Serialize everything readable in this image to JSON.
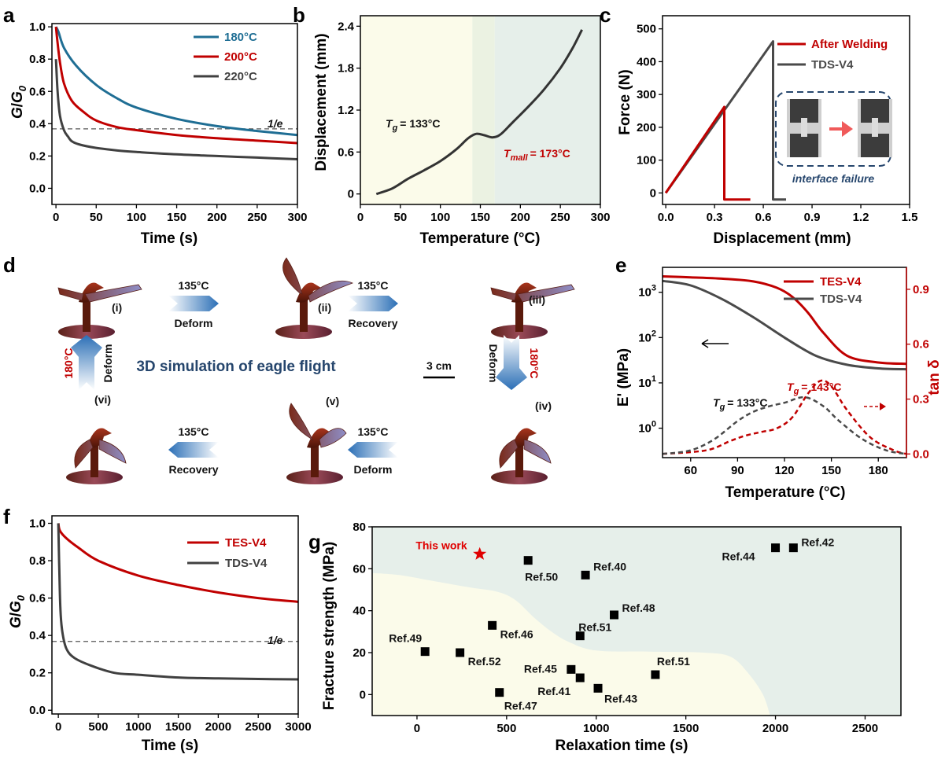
{
  "panel_labels": [
    "a",
    "b",
    "c",
    "d",
    "e",
    "f",
    "g"
  ],
  "colors": {
    "teal": "#1f6e94",
    "red": "#c00000",
    "dark": "#404040",
    "blue": "#2b6fb6",
    "navy": "#26466d",
    "shadeGreen": "#e6efea",
    "shadeYellow": "#fbfbea"
  },
  "chart_data": [
    {
      "id": "a",
      "type": "line",
      "xlabel": "Time (s)",
      "ylabel": "G/G0",
      "xlim": [
        -5,
        300
      ],
      "ylim": [
        -0.1,
        1.02
      ],
      "xticks": [
        "0",
        "50",
        "100",
        "150",
        "200",
        "250",
        "300"
      ],
      "yticks": [
        "0.0",
        "0.2",
        "0.4",
        "0.6",
        "0.8",
        "1.0"
      ],
      "series": [
        {
          "name": "180°C",
          "color": "#1f6e94",
          "x": [
            0,
            3,
            10,
            25,
            50,
            75,
            100,
            150,
            200,
            250,
            300
          ],
          "y": [
            1.0,
            0.97,
            0.87,
            0.76,
            0.64,
            0.56,
            0.5,
            0.43,
            0.385,
            0.355,
            0.33
          ]
        },
        {
          "name": "200°C",
          "color": "#c00000",
          "x": [
            0,
            2,
            5,
            10,
            20,
            35,
            50,
            75,
            100,
            150,
            200,
            250,
            300
          ],
          "y": [
            1.0,
            0.9,
            0.78,
            0.65,
            0.54,
            0.47,
            0.42,
            0.38,
            0.36,
            0.33,
            0.31,
            0.295,
            0.28
          ]
        },
        {
          "name": "220°C",
          "color": "#404040",
          "x": [
            0,
            2,
            5,
            10,
            15,
            20,
            30,
            50,
            75,
            100,
            150,
            200,
            250,
            300
          ],
          "y": [
            0.8,
            0.6,
            0.45,
            0.36,
            0.32,
            0.29,
            0.27,
            0.25,
            0.235,
            0.225,
            0.21,
            0.2,
            0.19,
            0.18
          ]
        }
      ],
      "reference": {
        "label": "1/e",
        "y": 0.368
      }
    },
    {
      "id": "b",
      "type": "line",
      "xlabel": "Temperature (°C)",
      "ylabel": "Displacement (mm)",
      "xlim": [
        0,
        300
      ],
      "ylim": [
        -0.15,
        2.55
      ],
      "xticks": [
        "0",
        "50",
        "100",
        "150",
        "200",
        "250",
        "300"
      ],
      "yticks": [
        "0",
        "0.6",
        "1.2",
        "1.8",
        "2.4"
      ],
      "series": [
        {
          "name": "",
          "color": "#333333",
          "x": [
            20,
            40,
            60,
            80,
            100,
            120,
            135,
            145,
            155,
            165,
            175,
            190,
            210,
            230,
            250,
            265,
            277
          ],
          "y": [
            0.0,
            0.08,
            0.22,
            0.34,
            0.47,
            0.64,
            0.8,
            0.86,
            0.84,
            0.81,
            0.85,
            1.02,
            1.25,
            1.5,
            1.8,
            2.08,
            2.35
          ]
        }
      ],
      "annotations": {
        "tg": "= 133°C",
        "tmall": "= 173°C",
        "tg_sym": "T",
        "tg_sub": "g",
        "tm_sym": "T",
        "tm_sub": "mall"
      },
      "regions": [
        [
          0,
          140
        ],
        [
          140,
          168
        ],
        [
          168,
          300
        ]
      ]
    },
    {
      "id": "c",
      "type": "line",
      "xlabel": "Displacement (mm)",
      "ylabel": "Force (N)",
      "xlim": [
        -0.02,
        1.5
      ],
      "ylim": [
        -35,
        540
      ],
      "xticks": [
        "0.0",
        "0.3",
        "0.6",
        "0.9",
        "1.2",
        "1.5"
      ],
      "yticks": [
        "0",
        "100",
        "200",
        "300",
        "400",
        "500"
      ],
      "series": [
        {
          "name": "After Welding",
          "color": "#c00000",
          "x": [
            0,
            0.36,
            0.36,
            0.52
          ],
          "y": [
            0,
            262,
            -20,
            -20
          ]
        },
        {
          "name": "TDS-V4",
          "color": "#4a4a4a",
          "x": [
            0,
            0.66,
            0.66,
            0.74
          ],
          "y": [
            0,
            462,
            -20,
            -20
          ]
        }
      ],
      "inset_caption": "interface failure"
    },
    {
      "id": "e",
      "type": "line",
      "xlabel": "Temperature (°C)",
      "ylabel": "E' (MPa)",
      "ylabel2": "tan δ",
      "xlim": [
        42,
        198
      ],
      "xticks": [
        "60",
        "90",
        "120",
        "150",
        "180"
      ],
      "yticks_log": [
        "10^0",
        "10^1",
        "10^2",
        "10^3"
      ],
      "yticks2": [
        "0.0",
        "0.3",
        "0.6",
        "0.9"
      ],
      "series": [
        {
          "name": "TES-V4",
          "color": "#c00000",
          "x": [
            42,
            60,
            80,
            100,
            115,
            125,
            135,
            145,
            160,
            180,
            198
          ],
          "logy": [
            3.35,
            3.33,
            3.3,
            3.24,
            3.1,
            2.9,
            2.55,
            2.1,
            1.6,
            1.45,
            1.42
          ]
        },
        {
          "name": "TDS-V4",
          "color": "#4a4a4a",
          "x": [
            42,
            60,
            80,
            100,
            120,
            140,
            160,
            180,
            198
          ],
          "logy": [
            3.25,
            3.15,
            2.85,
            2.45,
            2.0,
            1.6,
            1.4,
            1.32,
            1.3
          ]
        }
      ],
      "tan_series": [
        {
          "name": "TES-V4",
          "color": "#c00000",
          "x": [
            42,
            70,
            85,
            95,
            105,
            115,
            125,
            135,
            143,
            150,
            160,
            175,
            190,
            198
          ],
          "y": [
            0.0,
            0.02,
            0.07,
            0.1,
            0.12,
            0.14,
            0.2,
            0.33,
            0.4,
            0.37,
            0.24,
            0.09,
            0.02,
            0.0
          ]
        },
        {
          "name": "TDS-V4",
          "color": "#4a4a4a",
          "x": [
            42,
            60,
            75,
            90,
            100,
            110,
            120,
            133,
            145,
            155,
            170,
            185,
            198
          ],
          "y": [
            0.0,
            0.02,
            0.08,
            0.18,
            0.23,
            0.26,
            0.28,
            0.31,
            0.26,
            0.18,
            0.08,
            0.02,
            0.0
          ]
        }
      ],
      "annotations": {
        "tg_red": "= 143°C",
        "tg_black": "= 133°C",
        "sym": "T",
        "sub": "g"
      }
    },
    {
      "id": "f",
      "type": "line",
      "xlabel": "Time (s)",
      "ylabel": "G/G0",
      "xlim": [
        -80,
        3000
      ],
      "ylim": [
        -0.02,
        1.04
      ],
      "xticks": [
        "0",
        "500",
        "1000",
        "1500",
        "2000",
        "2500",
        "3000"
      ],
      "yticks": [
        "0.0",
        "0.2",
        "0.4",
        "0.6",
        "0.8",
        "1.0"
      ],
      "series": [
        {
          "name": "TES-V4",
          "color": "#c00000",
          "x": [
            0,
            20,
            100,
            250,
            500,
            1000,
            1500,
            2000,
            2500,
            3000
          ],
          "y": [
            1.0,
            0.96,
            0.92,
            0.87,
            0.8,
            0.72,
            0.67,
            0.63,
            0.6,
            0.58
          ]
        },
        {
          "name": "TDS-V4",
          "color": "#404040",
          "x": [
            0,
            10,
            25,
            50,
            100,
            200,
            400,
            700,
            1000,
            1500,
            2000,
            2500,
            3000
          ],
          "y": [
            1.0,
            0.8,
            0.55,
            0.42,
            0.33,
            0.28,
            0.24,
            0.2,
            0.19,
            0.175,
            0.17,
            0.167,
            0.165
          ]
        }
      ],
      "reference": {
        "label": "1/e",
        "y": 0.368
      }
    },
    {
      "id": "g",
      "type": "scatter",
      "xlabel": "Relaxation time (s)",
      "ylabel": "Fracture strength (MPa)",
      "xlim": [
        -250,
        2700
      ],
      "ylim": [
        -10,
        80
      ],
      "xticks": [
        "0",
        "500",
        "1000",
        "1500",
        "2000",
        "2500"
      ],
      "yticks": [
        "0",
        "20",
        "40",
        "60",
        "80"
      ],
      "points": [
        {
          "label": "Ref.49",
          "x": 45,
          "y": 20.5
        },
        {
          "label": "Ref.52",
          "x": 240,
          "y": 20
        },
        {
          "label": "Ref.46",
          "x": 420,
          "y": 33
        },
        {
          "label": "Ref.47",
          "x": 460,
          "y": 1
        },
        {
          "label": "Ref.50",
          "x": 620,
          "y": 64
        },
        {
          "label": "Ref.45",
          "x": 860,
          "y": 12
        },
        {
          "label": "Ref.41",
          "x": 910,
          "y": 8
        },
        {
          "label": "Ref.51",
          "x": 910,
          "y": 28
        },
        {
          "label": "Ref.40",
          "x": 940,
          "y": 57
        },
        {
          "label": "Ref.43",
          "x": 1010,
          "y": 3
        },
        {
          "label": "Ref.48",
          "x": 1100,
          "y": 38
        },
        {
          "label": "Ref.51",
          "x": 1330,
          "y": 9.5
        },
        {
          "label": "Ref.44",
          "x": 2000,
          "y": 70
        },
        {
          "label": "Ref.42",
          "x": 2100,
          "y": 70
        }
      ],
      "highlight": {
        "label": "This work",
        "x": 350,
        "y": 67,
        "color": "#e00000"
      }
    }
  ],
  "panel_d": {
    "title": "3D simulation of eagle flight",
    "roman": [
      "(i)",
      "(ii)",
      "(iii)",
      "(iv)",
      "(v)",
      "(vi)"
    ],
    "arrows": [
      {
        "temp": "135°C",
        "action": "Deform"
      },
      {
        "temp": "135°C",
        "action": "Recovery"
      },
      {
        "temp": "180°C",
        "action": "Deform"
      },
      {
        "temp": "135°C",
        "action": "Deform"
      },
      {
        "temp": "135°C",
        "action": "Recovery"
      },
      {
        "temp": "180°C",
        "action": "Deform"
      }
    ],
    "scale": "3 cm"
  }
}
